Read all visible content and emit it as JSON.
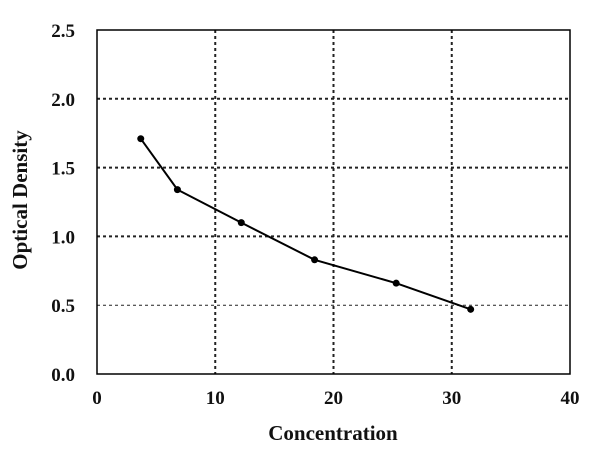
{
  "chart_data": {
    "type": "line",
    "title": "",
    "xlabel": "Concentration",
    "ylabel": "Optical Density",
    "xlim": [
      0,
      40
    ],
    "ylim": [
      0,
      2.5
    ],
    "xticks": [
      "0",
      "10",
      "20",
      "30",
      "40"
    ],
    "yticks": [
      "0.0",
      "0.5",
      "1.0",
      "1.5",
      "2.0",
      "2.5"
    ],
    "grid": true,
    "legend": "none",
    "series": [
      {
        "x": [
          3.7,
          6.8,
          12.2,
          18.4,
          25.3,
          31.6
        ],
        "y": [
          1.71,
          1.34,
          1.1,
          0.83,
          0.66,
          0.47
        ]
      }
    ]
  }
}
